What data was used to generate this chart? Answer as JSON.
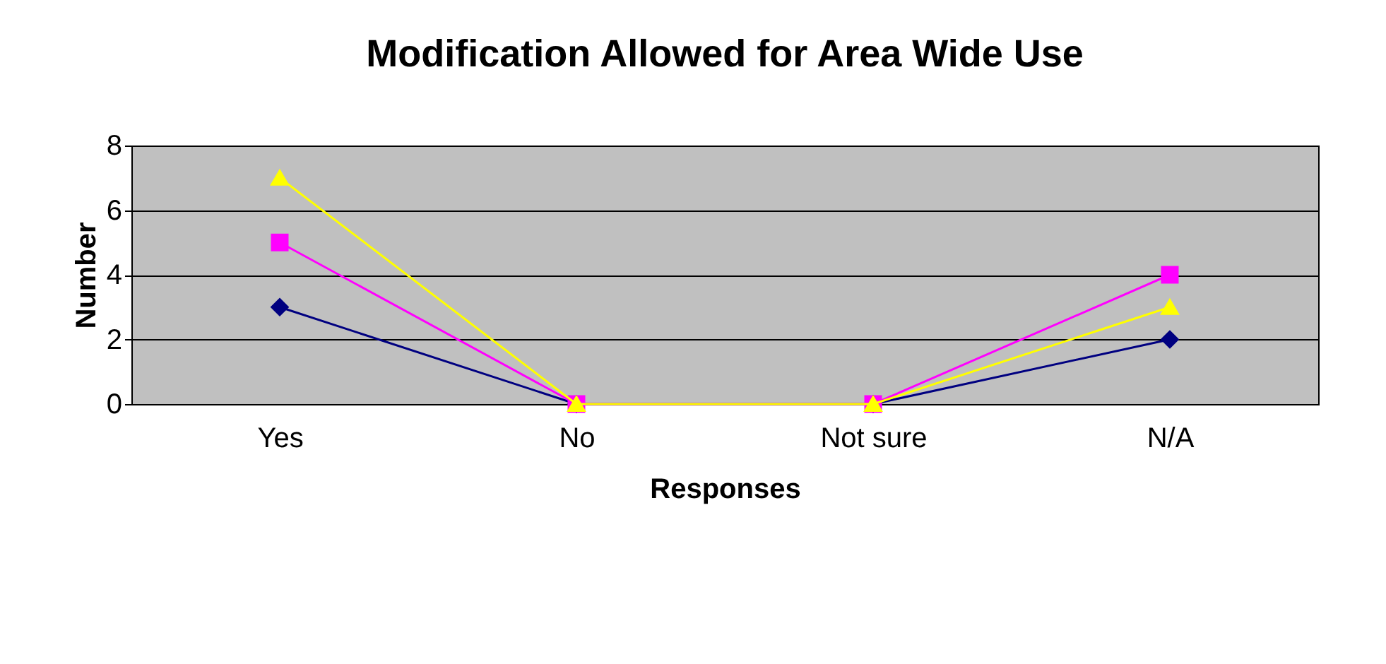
{
  "chart_data": {
    "type": "line",
    "title": "Modification Allowed for Area Wide Use",
    "xlabel": "Responses",
    "ylabel": "Number",
    "categories": [
      "Yes",
      "No",
      "Not sure",
      "N/A"
    ],
    "series": [
      {
        "color": "#000080",
        "marker": "diamond",
        "values": [
          3,
          0,
          0,
          2
        ]
      },
      {
        "color": "#ff00ff",
        "marker": "square",
        "values": [
          5,
          0,
          0,
          4
        ]
      },
      {
        "color": "#ffff00",
        "marker": "triangle",
        "values": [
          7,
          0,
          0,
          3
        ]
      }
    ],
    "ylim": [
      0,
      8
    ],
    "yticks": [
      0,
      2,
      4,
      6,
      8
    ],
    "grid": "y"
  }
}
